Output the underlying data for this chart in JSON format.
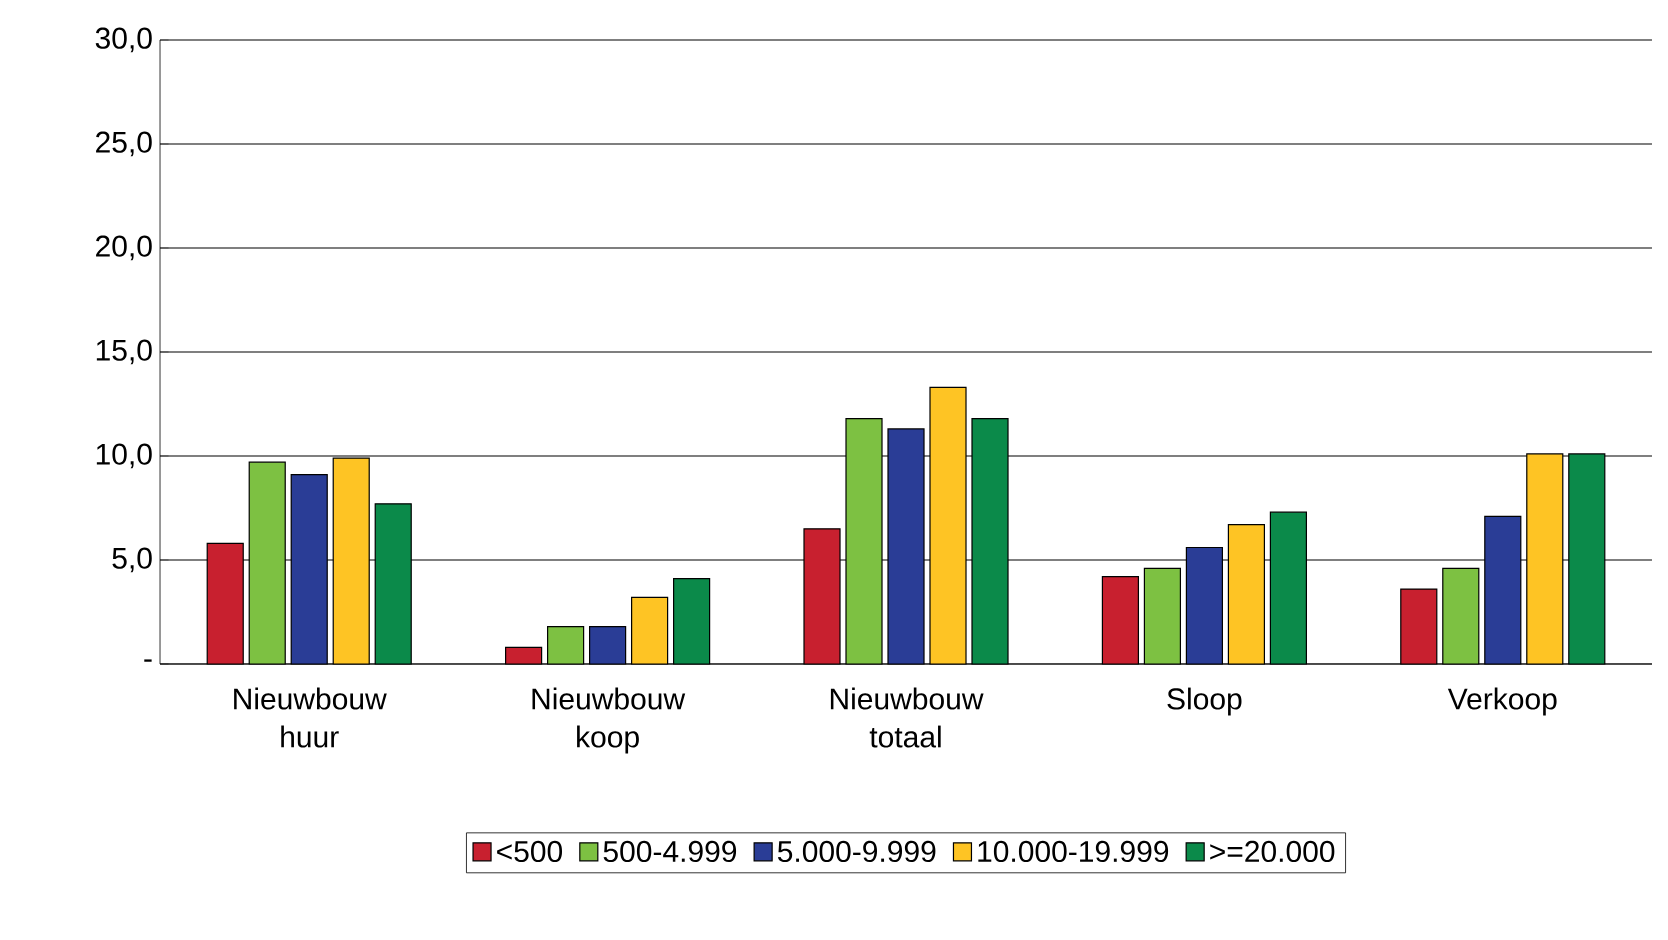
{
  "chart_data": {
    "type": "bar",
    "categories": [
      "Nieuwbouw huur",
      "Nieuwbouw koop",
      "Nieuwbouw totaal",
      "Sloop",
      "Verkoop"
    ],
    "series": [
      {
        "name": "<500",
        "color": "#c8202f",
        "values": [
          5.8,
          0.8,
          6.5,
          4.2,
          3.6
        ]
      },
      {
        "name": "500-4.999",
        "color": "#7dc142",
        "values": [
          9.7,
          1.8,
          11.8,
          4.6,
          4.6
        ]
      },
      {
        "name": "5.000-9.999",
        "color": "#2a3d96",
        "values": [
          9.1,
          1.8,
          11.3,
          5.6,
          7.1
        ]
      },
      {
        "name": "10.000-19.999",
        "color": "#fec424",
        "values": [
          9.9,
          3.2,
          13.3,
          6.7,
          10.1
        ]
      },
      {
        "name": ">=20.000",
        "color": "#0b8a4a",
        "values": [
          7.7,
          4.1,
          11.8,
          7.3,
          10.1
        ]
      }
    ],
    "ylim": [
      0,
      30
    ],
    "yticks": [
      {
        "value": 0,
        "label": "-"
      },
      {
        "value": 5,
        "label": "5,0"
      },
      {
        "value": 10,
        "label": "10,0"
      },
      {
        "value": 15,
        "label": "15,0"
      },
      {
        "value": 20,
        "label": "20,0"
      },
      {
        "value": 25,
        "label": "25,0"
      },
      {
        "value": 30,
        "label": "30,0"
      }
    ],
    "grid": "y",
    "legend": "bottom"
  }
}
